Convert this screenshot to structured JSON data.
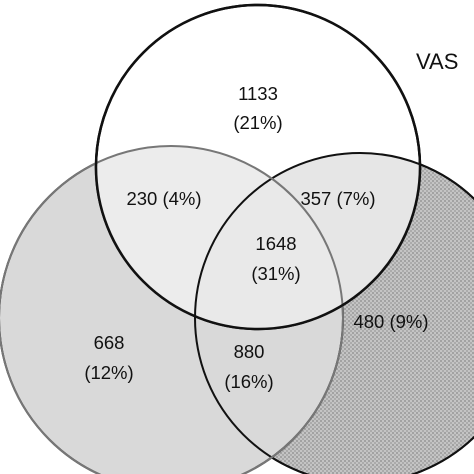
{
  "set_labels": {
    "top": "VAS"
  },
  "regions": {
    "top_only": {
      "count": "1133",
      "pct": "(21%)"
    },
    "top_left": {
      "text": "230 (4%)"
    },
    "top_right": {
      "text": "357 (7%)"
    },
    "center": {
      "count": "1648",
      "pct": "(31%)"
    },
    "left_only": {
      "count": "668",
      "pct": "(12%)"
    },
    "left_right": {
      "count": "880",
      "pct": "(16%)"
    },
    "right_only": {
      "text": "480 (9%)"
    }
  },
  "colors": {
    "top_circle_fill": "#ffffff",
    "left_circle_fill": "#dcdcdc",
    "right_circle_fill": "#b8b8b8",
    "overlap_light": "#ececec",
    "outline": "#111111"
  }
}
